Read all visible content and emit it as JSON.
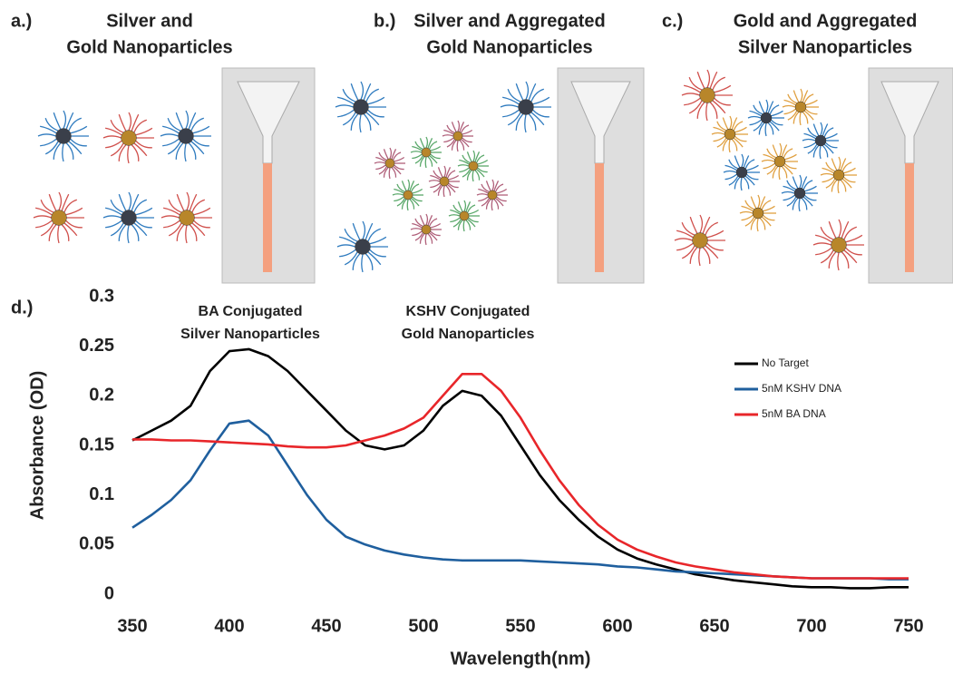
{
  "panels": [
    {
      "label": "a.)",
      "title": [
        "Silver and",
        "Gold Nanoparticles"
      ]
    },
    {
      "label": "b.)",
      "title": [
        "Silver and Aggregated",
        "Gold Nanoparticles"
      ]
    },
    {
      "label": "c.)",
      "title": [
        "Gold and Aggregated",
        "Silver Nanoparticles"
      ]
    }
  ],
  "chart_data": {
    "type": "line",
    "panel_label": "d.)",
    "x_label": "Wavelength(nm)",
    "y_label": "Absorbance (OD)",
    "annotations": [
      [
        "BA Conjugated",
        "Silver Nanoparticles"
      ],
      [
        "KSHV Conjugated",
        "Gold Nanoparticles"
      ]
    ],
    "x": [
      350,
      360,
      370,
      380,
      390,
      400,
      410,
      420,
      430,
      440,
      450,
      460,
      470,
      480,
      490,
      500,
      510,
      520,
      530,
      540,
      550,
      560,
      570,
      580,
      590,
      600,
      610,
      620,
      630,
      640,
      650,
      660,
      670,
      680,
      690,
      700,
      710,
      720,
      730,
      740,
      750
    ],
    "series": [
      {
        "name": "No Target",
        "color": "#000000",
        "values": [
          0.155,
          0.165,
          0.175,
          0.19,
          0.225,
          0.245,
          0.247,
          0.24,
          0.225,
          0.205,
          0.185,
          0.165,
          0.15,
          0.146,
          0.15,
          0.165,
          0.19,
          0.205,
          0.2,
          0.18,
          0.15,
          0.12,
          0.095,
          0.075,
          0.058,
          0.045,
          0.036,
          0.03,
          0.025,
          0.02,
          0.017,
          0.014,
          0.012,
          0.01,
          0.008,
          0.007,
          0.007,
          0.006,
          0.006,
          0.007,
          0.007
        ]
      },
      {
        "name": "5nM KSHV DNA",
        "color": "#1f5f9e",
        "values": [
          0.067,
          0.08,
          0.095,
          0.115,
          0.145,
          0.172,
          0.175,
          0.16,
          0.13,
          0.1,
          0.075,
          0.058,
          0.05,
          0.044,
          0.04,
          0.037,
          0.035,
          0.034,
          0.034,
          0.034,
          0.034,
          0.033,
          0.032,
          0.031,
          0.03,
          0.028,
          0.027,
          0.025,
          0.023,
          0.022,
          0.021,
          0.02,
          0.019,
          0.018,
          0.017,
          0.016,
          0.016,
          0.016,
          0.016,
          0.015,
          0.015
        ]
      },
      {
        "name": "5nM BA DNA",
        "color": "#e8262a",
        "values": [
          0.156,
          0.156,
          0.155,
          0.155,
          0.154,
          0.153,
          0.152,
          0.151,
          0.149,
          0.148,
          0.148,
          0.15,
          0.155,
          0.16,
          0.167,
          0.178,
          0.2,
          0.222,
          0.222,
          0.205,
          0.178,
          0.145,
          0.115,
          0.09,
          0.07,
          0.055,
          0.045,
          0.038,
          0.032,
          0.028,
          0.025,
          0.022,
          0.02,
          0.018,
          0.017,
          0.016,
          0.016,
          0.016,
          0.016,
          0.016,
          0.016
        ]
      }
    ],
    "xlim": [
      350,
      750
    ],
    "ylim": [
      0,
      0.3
    ],
    "xticks": [
      350,
      400,
      450,
      500,
      550,
      600,
      650,
      700,
      750
    ],
    "yticks": [
      0,
      0.05,
      0.1,
      0.15,
      0.2,
      0.25,
      0.3
    ],
    "grid": false,
    "legend": "right"
  }
}
